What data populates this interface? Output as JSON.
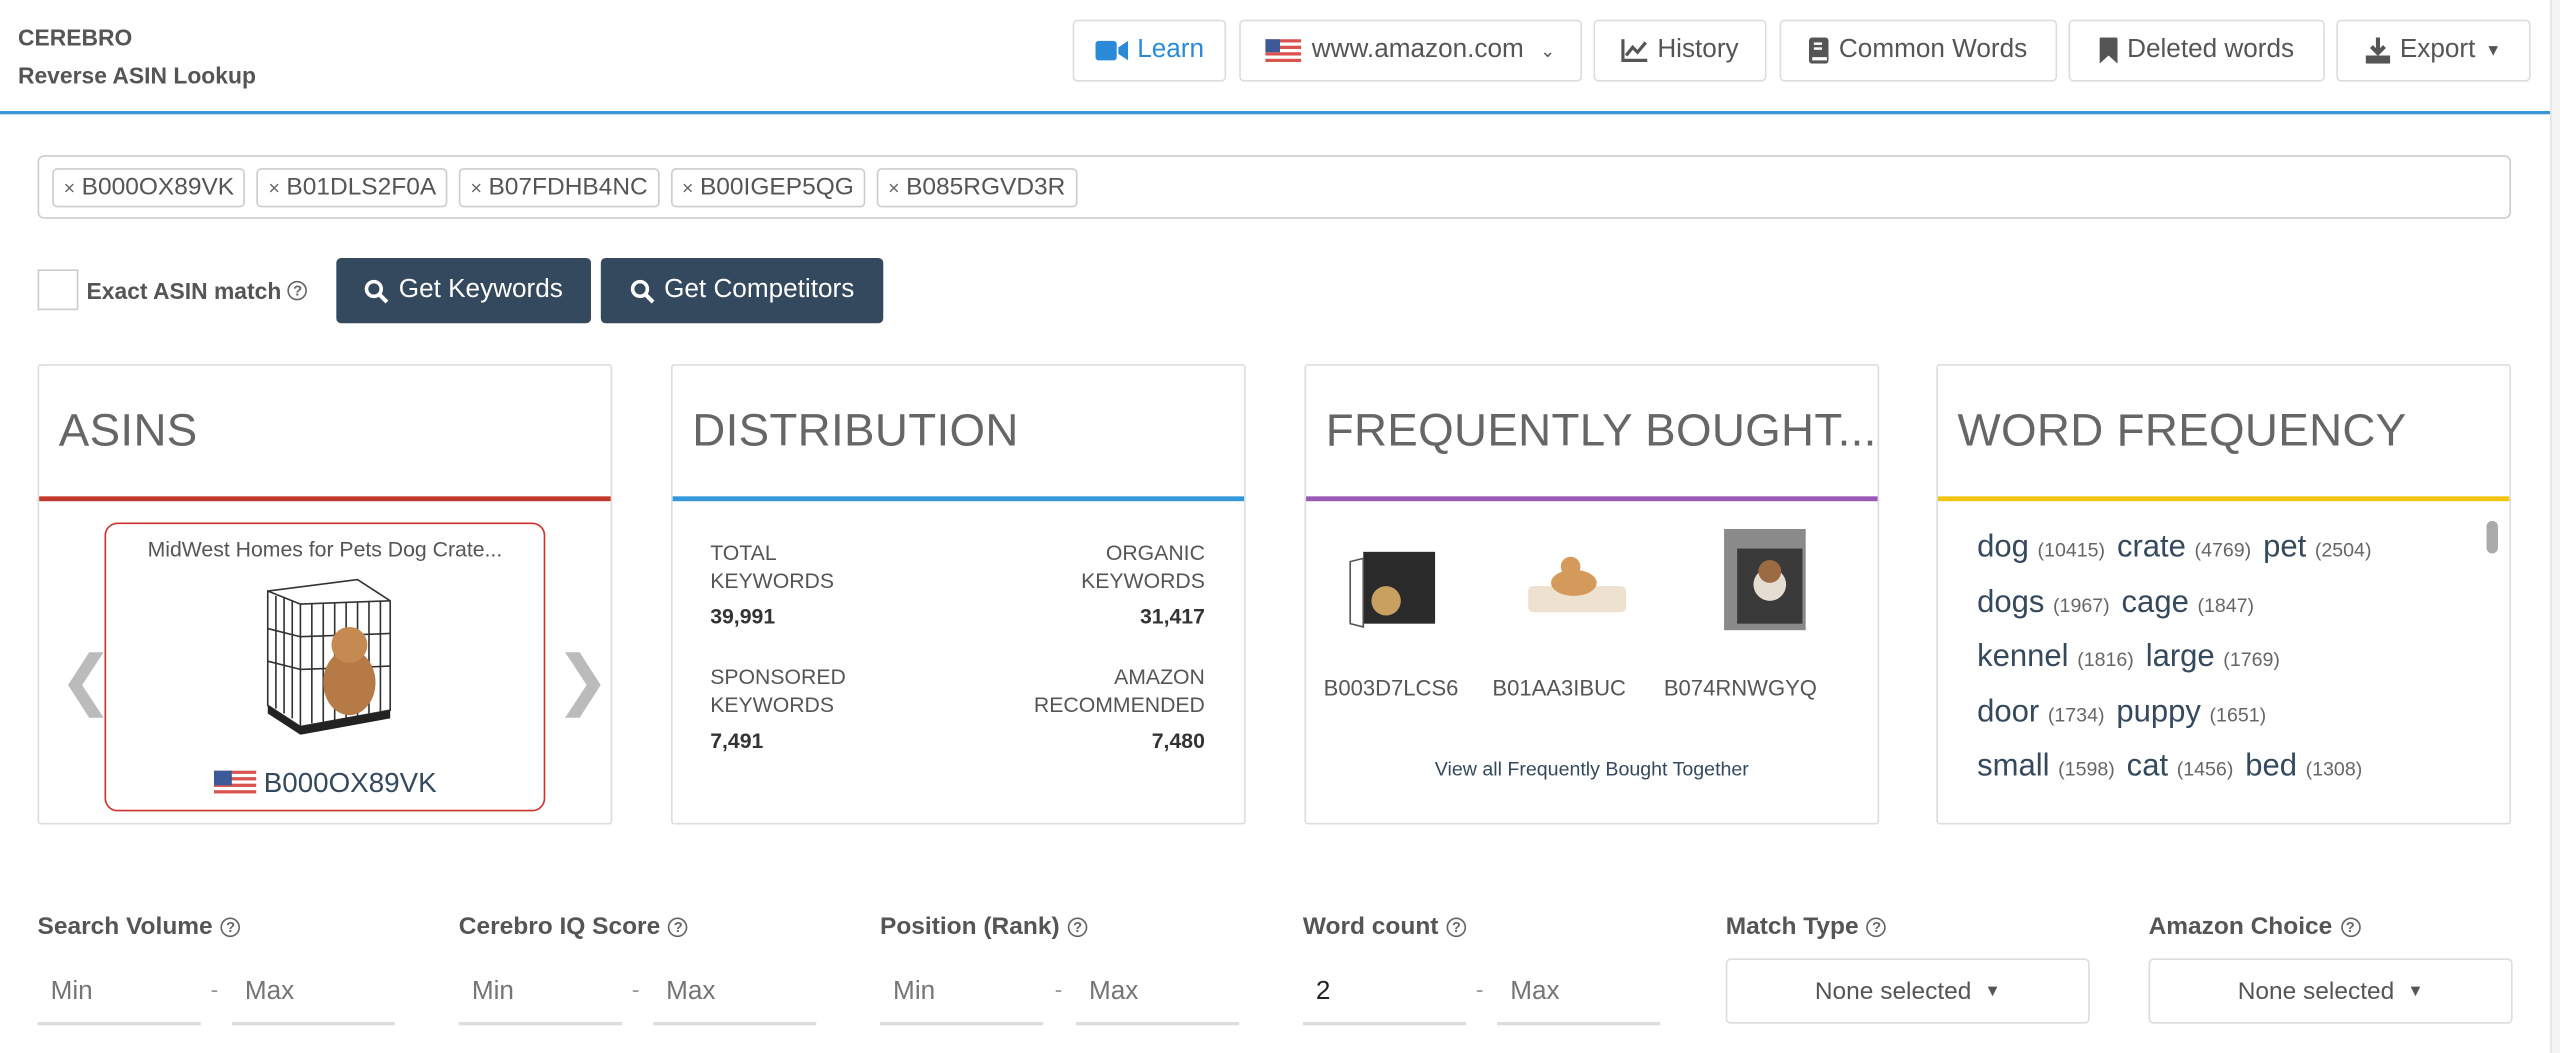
{
  "header": {
    "app_name": "CEREBRO",
    "subtitle": "Reverse ASIN Lookup"
  },
  "toolbar": {
    "learn": "Learn",
    "marketplace": "www.amazon.com",
    "history": "History",
    "common_words": "Common Words",
    "deleted_words": "Deleted words",
    "export": "Export"
  },
  "asin_tags": [
    "B000OX89VK",
    "B01DLS2F0A",
    "B07FDHB4NC",
    "B00IGEP5QG",
    "B085RGVD3R"
  ],
  "options": {
    "exact_match_label": "Exact ASIN match",
    "exact_match_checked": false
  },
  "actions": {
    "get_keywords": "Get Keywords",
    "get_competitors": "Get Competitors"
  },
  "colors": {
    "accent": "#3a97d4",
    "button_dark": "#34495e",
    "asins": "#c0392b",
    "distribution": "#3498db",
    "fbt": "#9b59b6",
    "word_frequency": "#f1c40f"
  },
  "cards": {
    "asins": {
      "title": "ASINS",
      "product_title": "MidWest Homes for Pets Dog Crate...",
      "asin": "B000OX89VK"
    },
    "distribution": {
      "title": "DISTRIBUTION",
      "total_label_1": "TOTAL",
      "total_label_2": "KEYWORDS",
      "total_value": "39,991",
      "organic_label_1": "ORGANIC",
      "organic_label_2": "KEYWORDS",
      "organic_value": "31,417",
      "sponsored_label_1": "SPONSORED",
      "sponsored_label_2": "KEYWORDS",
      "sponsored_value": "7,491",
      "amazon_label_1": "AMAZON",
      "amazon_label_2": "RECOMMENDED",
      "amazon_value": "7,480"
    },
    "fbt": {
      "title": "FREQUENTLY BOUGHT...",
      "items": [
        "B003D7LCS6",
        "B01AA3IBUC",
        "B074RNWGYQ"
      ],
      "view_all": "View all Frequently Bought Together"
    },
    "word_frequency": {
      "title": "WORD FREQUENCY",
      "words": [
        {
          "w": "dog",
          "c": "(10415)"
        },
        {
          "w": "crate",
          "c": "(4769)"
        },
        {
          "w": "pet",
          "c": "(2504)"
        },
        {
          "w": "dogs",
          "c": "(1967)"
        },
        {
          "w": "cage",
          "c": "(1847)"
        },
        {
          "w": "kennel",
          "c": "(1816)"
        },
        {
          "w": "large",
          "c": "(1769)"
        },
        {
          "w": "door",
          "c": "(1734)"
        },
        {
          "w": "puppy",
          "c": "(1651)"
        },
        {
          "w": "small",
          "c": "(1598)"
        },
        {
          "w": "cat",
          "c": "(1456)"
        },
        {
          "w": "bed",
          "c": "(1308)"
        }
      ]
    }
  },
  "filters": {
    "search_volume": {
      "label": "Search Volume",
      "min_ph": "Min",
      "max_ph": "Max"
    },
    "iq_score": {
      "label": "Cerebro IQ Score",
      "min_ph": "Min",
      "max_ph": "Max"
    },
    "position": {
      "label": "Position (Rank)",
      "min_ph": "Min",
      "max_ph": "Max"
    },
    "word_count": {
      "label": "Word count",
      "min_value": "2",
      "max_ph": "Max"
    },
    "match_type": {
      "label": "Match Type",
      "value": "None selected"
    },
    "amazon_choice": {
      "label": "Amazon Choice",
      "value": "None selected"
    },
    "dash": "-"
  }
}
